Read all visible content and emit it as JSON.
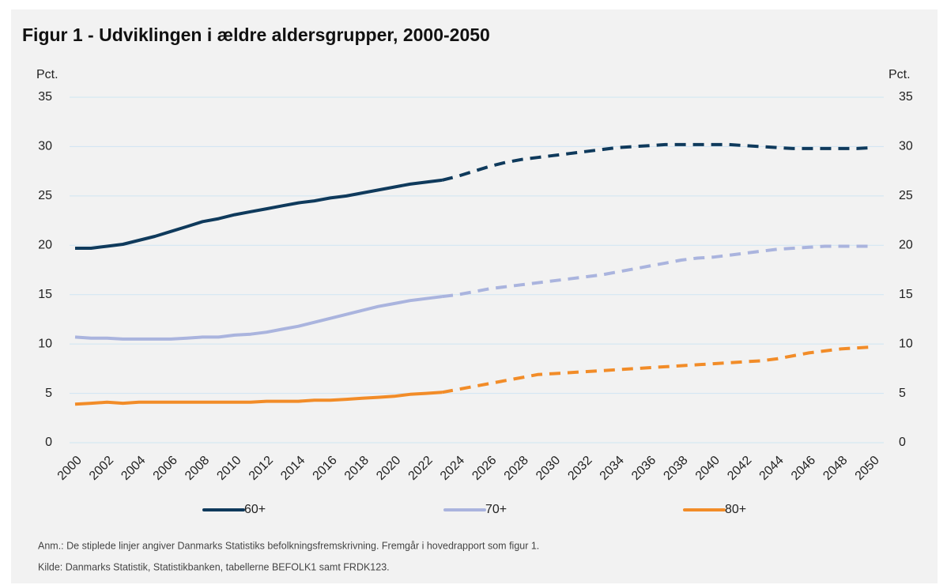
{
  "chart_data": {
    "type": "line",
    "title": "Figur 1 - Udviklingen i ældre aldersgrupper, 2000-2050",
    "ylabel": "Pct.",
    "y2label": "Pct.",
    "x": [
      2000,
      2001,
      2002,
      2003,
      2004,
      2005,
      2006,
      2007,
      2008,
      2009,
      2010,
      2011,
      2012,
      2013,
      2014,
      2015,
      2016,
      2017,
      2018,
      2019,
      2020,
      2021,
      2022,
      2023,
      2024,
      2025,
      2026,
      2027,
      2028,
      2029,
      2030,
      2031,
      2032,
      2033,
      2034,
      2035,
      2036,
      2037,
      2038,
      2039,
      2040,
      2041,
      2042,
      2043,
      2044,
      2045,
      2046,
      2047,
      2048,
      2049,
      2050
    ],
    "xlim": [
      2000,
      2050
    ],
    "xticks": [
      2000,
      2002,
      2004,
      2006,
      2008,
      2010,
      2012,
      2014,
      2016,
      2018,
      2020,
      2022,
      2024,
      2026,
      2028,
      2030,
      2032,
      2034,
      2036,
      2038,
      2040,
      2042,
      2044,
      2046,
      2048,
      2050
    ],
    "ylim": [
      0,
      35
    ],
    "yticks": [
      0,
      5,
      10,
      15,
      20,
      25,
      30,
      35
    ],
    "y2lim": [
      0,
      35
    ],
    "y2ticks": [
      0,
      5,
      10,
      15,
      20,
      25,
      30,
      35
    ],
    "grid": true,
    "projection_from": 2023,
    "legend": "bottom",
    "series": [
      {
        "name": "60+",
        "color": "#0f3a5c",
        "values": [
          19.7,
          19.7,
          19.9,
          20.1,
          20.5,
          20.9,
          21.4,
          21.9,
          22.4,
          22.7,
          23.1,
          23.4,
          23.7,
          24.0,
          24.3,
          24.5,
          24.8,
          25.0,
          25.3,
          25.6,
          25.9,
          26.2,
          26.4,
          26.6,
          27.0,
          27.5,
          28.0,
          28.4,
          28.7,
          28.9,
          29.1,
          29.3,
          29.5,
          29.7,
          29.9,
          30.0,
          30.1,
          30.2,
          30.2,
          30.2,
          30.2,
          30.2,
          30.1,
          30.0,
          29.9,
          29.8,
          29.8,
          29.8,
          29.8,
          29.8,
          29.9
        ]
      },
      {
        "name": "70+",
        "color": "#aab4de",
        "values": [
          10.7,
          10.6,
          10.6,
          10.5,
          10.5,
          10.5,
          10.5,
          10.6,
          10.7,
          10.7,
          10.9,
          11.0,
          11.2,
          11.5,
          11.8,
          12.2,
          12.6,
          13.0,
          13.4,
          13.8,
          14.1,
          14.4,
          14.6,
          14.8,
          15.0,
          15.3,
          15.6,
          15.8,
          16.0,
          16.2,
          16.4,
          16.6,
          16.8,
          17.0,
          17.3,
          17.6,
          17.9,
          18.2,
          18.5,
          18.7,
          18.8,
          19.0,
          19.2,
          19.4,
          19.6,
          19.7,
          19.8,
          19.9,
          19.9,
          19.9,
          19.9
        ]
      },
      {
        "name": "80+",
        "color": "#f28c28",
        "values": [
          3.9,
          4.0,
          4.1,
          4.0,
          4.1,
          4.1,
          4.1,
          4.1,
          4.1,
          4.1,
          4.1,
          4.1,
          4.2,
          4.2,
          4.2,
          4.3,
          4.3,
          4.4,
          4.5,
          4.6,
          4.7,
          4.9,
          5.0,
          5.1,
          5.4,
          5.7,
          6.0,
          6.3,
          6.6,
          6.9,
          7.0,
          7.1,
          7.2,
          7.3,
          7.4,
          7.5,
          7.6,
          7.7,
          7.8,
          7.9,
          8.0,
          8.1,
          8.2,
          8.3,
          8.5,
          8.8,
          9.1,
          9.3,
          9.5,
          9.6,
          9.7
        ]
      }
    ],
    "notes": [
      "Anm.:  De stiplede linjer angiver Danmarks Statistiks befolkningsfremskrivning. Fremgår i hovedrapport som figur 1.",
      "Kilde:  Danmarks Statistik, Statistikbanken, tabellerne BEFOLK1 samt FRDK123."
    ]
  }
}
